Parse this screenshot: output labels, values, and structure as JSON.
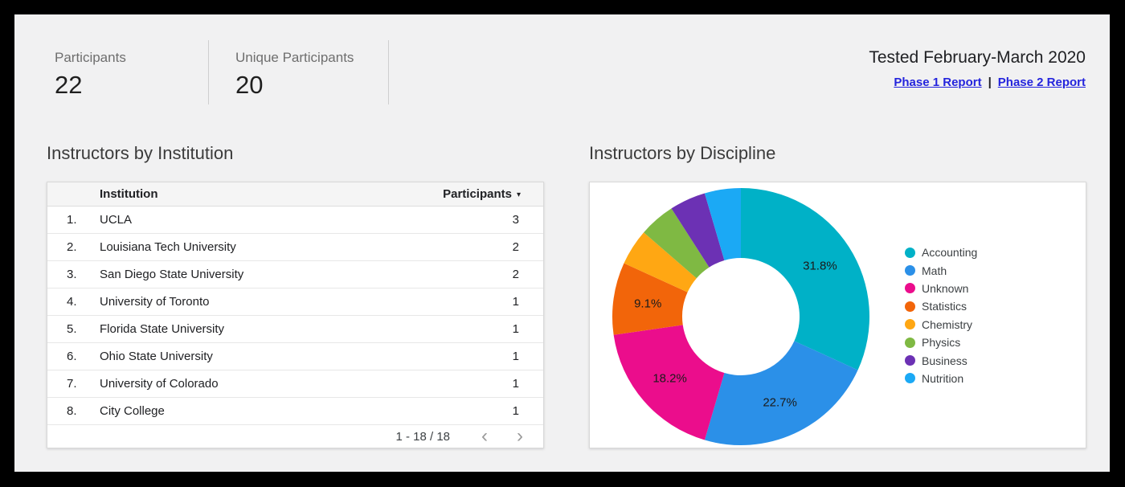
{
  "header": {
    "stats": [
      {
        "label": "Participants",
        "value": "22"
      },
      {
        "label": "Unique Participants",
        "value": "20"
      }
    ],
    "tested_label": "Tested February-March 2020",
    "links": [
      {
        "label": "Phase 1 Report"
      },
      {
        "label": "Phase 2 Report"
      }
    ],
    "link_separator": "|"
  },
  "institution_section": {
    "title": "Instructors by Institution",
    "table": {
      "columns": {
        "institution": "Institution",
        "participants": "Participants"
      },
      "sort_indicator": "▾",
      "rows": [
        {
          "rank": "1.",
          "institution": "UCLA",
          "participants": "3"
        },
        {
          "rank": "2.",
          "institution": "Louisiana Tech University",
          "participants": "2"
        },
        {
          "rank": "3.",
          "institution": "San Diego State University",
          "participants": "2"
        },
        {
          "rank": "4.",
          "institution": "University of Toronto",
          "participants": "1"
        },
        {
          "rank": "5.",
          "institution": "Florida State University",
          "participants": "1"
        },
        {
          "rank": "6.",
          "institution": "Ohio State University",
          "participants": "1"
        },
        {
          "rank": "7.",
          "institution": "University of Colorado",
          "participants": "1"
        },
        {
          "rank": "8.",
          "institution": "City College",
          "participants": "1"
        }
      ],
      "pagination": {
        "range_label": "1 - 18 / 18",
        "prev_icon": "‹",
        "next_icon": "›"
      }
    }
  },
  "discipline_section": {
    "title": "Instructors by Discipline"
  },
  "chart_data": {
    "type": "pie",
    "title": "Instructors by Discipline",
    "donut": true,
    "legend_position": "right",
    "total": 22,
    "slices": [
      {
        "name": "Accounting",
        "value": 7,
        "pct_label": "31.8%",
        "color": "#00b1c7"
      },
      {
        "name": "Math",
        "value": 5,
        "pct_label": "22.7%",
        "color": "#2b90e8"
      },
      {
        "name": "Unknown",
        "value": 4,
        "pct_label": "18.2%",
        "color": "#eb0d8c"
      },
      {
        "name": "Statistics",
        "value": 2,
        "pct_label": "9.1%",
        "color": "#f2650a"
      },
      {
        "name": "Chemistry",
        "value": 1,
        "pct_label": "",
        "color": "#ffa713"
      },
      {
        "name": "Physics",
        "value": 1,
        "pct_label": "",
        "color": "#7fb943"
      },
      {
        "name": "Business",
        "value": 1,
        "pct_label": "",
        "color": "#6c31b4"
      },
      {
        "name": "Nutrition",
        "value": 1,
        "pct_label": "",
        "color": "#1ba9f5"
      }
    ]
  }
}
